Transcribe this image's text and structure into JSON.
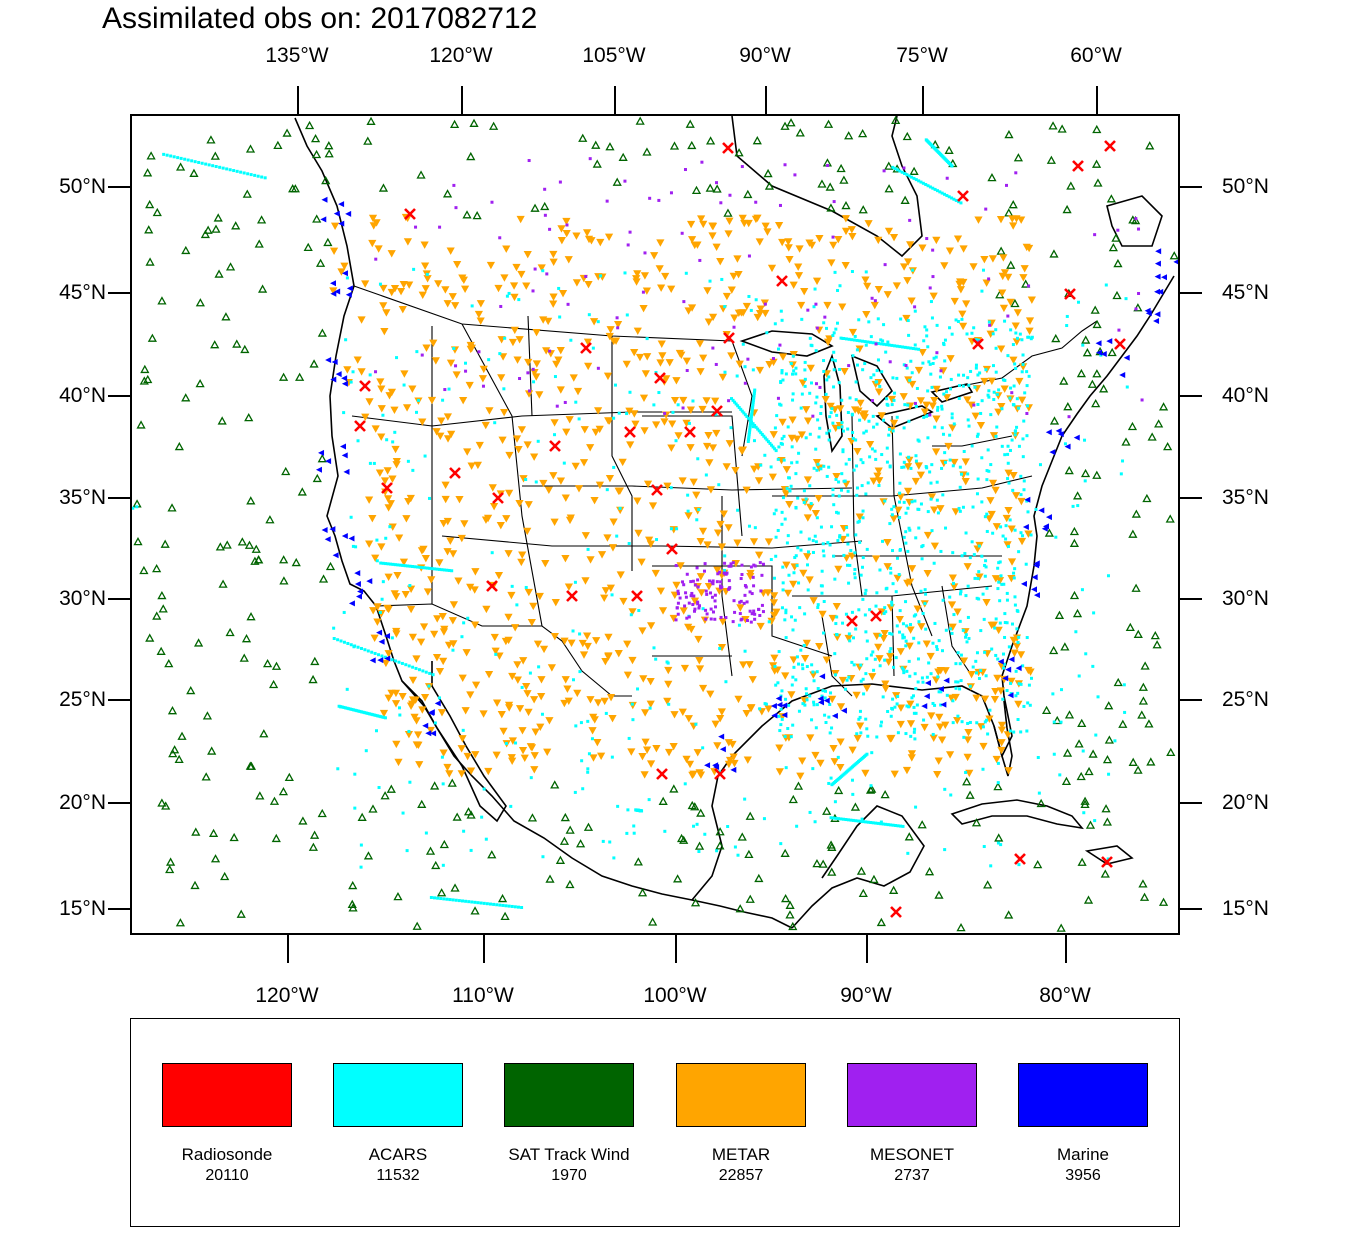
{
  "title": "Assimilated obs on: 2017082712",
  "top_lon_labels": [
    "135°W",
    "120°W",
    "105°W",
    "90°W",
    "75°W",
    "60°W"
  ],
  "bottom_lon_labels": [
    "120°W",
    "110°W",
    "100°W",
    "90°W",
    "80°W"
  ],
  "lat_labels": [
    "50°N",
    "45°N",
    "40°N",
    "35°N",
    "30°N",
    "25°N",
    "20°N",
    "15°N"
  ],
  "legend": [
    {
      "name": "Radiosonde",
      "count": "20110",
      "color": "#ff0000"
    },
    {
      "name": "ACARS",
      "count": "11532",
      "color": "#00ffff"
    },
    {
      "name": "SAT Track Wind",
      "count": "1970",
      "color": "#006400"
    },
    {
      "name": "METAR",
      "count": "22857",
      "color": "#ffa500"
    },
    {
      "name": "MESONET",
      "count": "2737",
      "color": "#a020f0"
    },
    {
      "name": "Marine",
      "count": "3956",
      "color": "#0000ff"
    }
  ]
}
